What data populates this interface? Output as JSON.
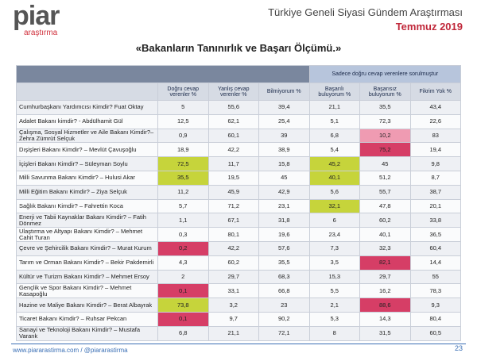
{
  "header": {
    "logo": "piar",
    "logo_sub": "araştırma",
    "title": "Türkiye Geneli Siyasi Gündem Araştırması",
    "date": "Temmuz 2019"
  },
  "subtitle": "«Bakanların Tanınırlık ve Başarı Ölçümü.»",
  "table": {
    "group_header": "Sadece doğru cevap verenlere sorulmuştur",
    "columns": [
      "Doğru cevap verenler %",
      "Yanlış cevap verenler %",
      "Bilmiyorum %",
      "Başarılı buluyorum %",
      "Başarısız buluyorum %",
      "Fikrim Yok %"
    ],
    "rows": [
      {
        "label": "Cumhurbaşkanı Yardımcısı Kimdir? Fuat Oktay",
        "cells": [
          "5",
          "55,6",
          "39,4",
          "21,1",
          "35,5",
          "43,4"
        ]
      },
      {
        "label": "Adalet Bakanı kimdir? - Abdülhamit Gül",
        "cells": [
          "12,5",
          "62,1",
          "25,4",
          "5,1",
          "72,3",
          "22,6"
        ]
      },
      {
        "label": "Çalışma, Sosyal Hizmetler ve Aile Bakanı Kimdir?– Zehra Zümrüt Selçuk",
        "cells": [
          "0,9",
          "60,1",
          "39",
          "6,8",
          "10,2",
          "83"
        ]
      },
      {
        "label": "Dışişleri Bakanı Kimdir? – Mevlüt Çavuşoğlu",
        "cells": [
          "18,9",
          "42,2",
          "38,9",
          "5,4",
          "75,2",
          "19,4"
        ]
      },
      {
        "label": "İçişleri Bakanı Kimdir? – Süleyman Soylu",
        "cells": [
          "72,5",
          "11,7",
          "15,8",
          "45,2",
          "45",
          "9,8"
        ]
      },
      {
        "label": "Milli Savunma Bakanı Kimdir? – Hulusi Akar",
        "cells": [
          "35,5",
          "19,5",
          "45",
          "40,1",
          "51,2",
          "8,7"
        ]
      },
      {
        "label": "Milli Eğitim Bakanı Kimdir? – Ziya Selçuk",
        "cells": [
          "11,2",
          "45,9",
          "42,9",
          "5,6",
          "55,7",
          "38,7"
        ]
      },
      {
        "label": "Sağlık Bakanı Kimdir? – Fahrettin Koca",
        "cells": [
          "5,7",
          "71,2",
          "23,1",
          "32,1",
          "47,8",
          "20,1"
        ]
      },
      {
        "label": "Enerji ve Tabii Kaynaklar Bakanı Kimdir? – Fatih Dönmez",
        "cells": [
          "1,1",
          "67,1",
          "31,8",
          "6",
          "60,2",
          "33,8"
        ]
      },
      {
        "label": "Ulaştırma ve Altyapı Bakanı Kimdir? – Mehmet Cahit Turan",
        "cells": [
          "0,3",
          "80,1",
          "19,6",
          "23,4",
          "40,1",
          "36,5"
        ]
      },
      {
        "label": "Çevre ve Şehircilik Bakanı Kimdir? – Murat Kurum",
        "cells": [
          "0,2",
          "42,2",
          "57,6",
          "7,3",
          "32,3",
          "60,4"
        ]
      },
      {
        "label": "Tarım ve Orman Bakanı Kimdir? – Bekir Pakdemirli",
        "cells": [
          "4,3",
          "60,2",
          "35,5",
          "3,5",
          "82,1",
          "14,4"
        ]
      },
      {
        "label": "Kültür ve Turizm Bakanı Kimdir? – Mehmet Ersoy",
        "cells": [
          "2",
          "29,7",
          "68,3",
          "15,3",
          "29,7",
          "55"
        ]
      },
      {
        "label": "Gençlik ve Spor Bakanı Kimdir? – Mehmet Kasapoğlu",
        "cells": [
          "0,1",
          "33,1",
          "66,8",
          "5,5",
          "16,2",
          "78,3"
        ]
      },
      {
        "label": "Hazine ve Maliye Bakanı Kimdir? – Berat Albayrak",
        "cells": [
          "73,8",
          "3,2",
          "23",
          "2,1",
          "88,6",
          "9,3"
        ]
      },
      {
        "label": "Ticaret Bakanı Kimdir? – Ruhsar Pekcan",
        "cells": [
          "0,1",
          "9,7",
          "90,2",
          "5,3",
          "14,3",
          "80,4"
        ]
      },
      {
        "label": "Sanayi ve Teknoloji Bakanı Kimdir? – Mustafa Varank",
        "cells": [
          "6,8",
          "21,1",
          "72,1",
          "8",
          "31,5",
          "60,5"
        ]
      }
    ]
  },
  "footer": {
    "link": "www.piararastirma.com / @piararastirma",
    "page": "23"
  }
}
